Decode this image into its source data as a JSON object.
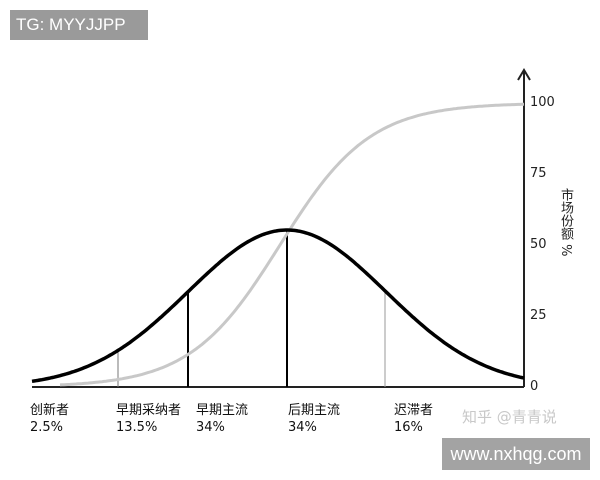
{
  "watermarks": {
    "tg": "TG: MYYJJPP",
    "zhihu": "知乎 @青青说",
    "site": "www.nxhqg.com"
  },
  "y_axis": {
    "label": "市场份额 %",
    "ticks": [
      "100",
      "75",
      "50",
      "25",
      "0"
    ]
  },
  "segments": [
    {
      "name": "创新者",
      "share": "2.5%"
    },
    {
      "name": "早期采纳者",
      "share": "13.5%"
    },
    {
      "name": "早期主流",
      "share": "34%"
    },
    {
      "name": "后期主流",
      "share": "34%"
    },
    {
      "name": "迟滞者",
      "share": "16%"
    }
  ],
  "colors": {
    "adoption_curve": "#000000",
    "market_share_curve": "#c8c8c8"
  }
}
